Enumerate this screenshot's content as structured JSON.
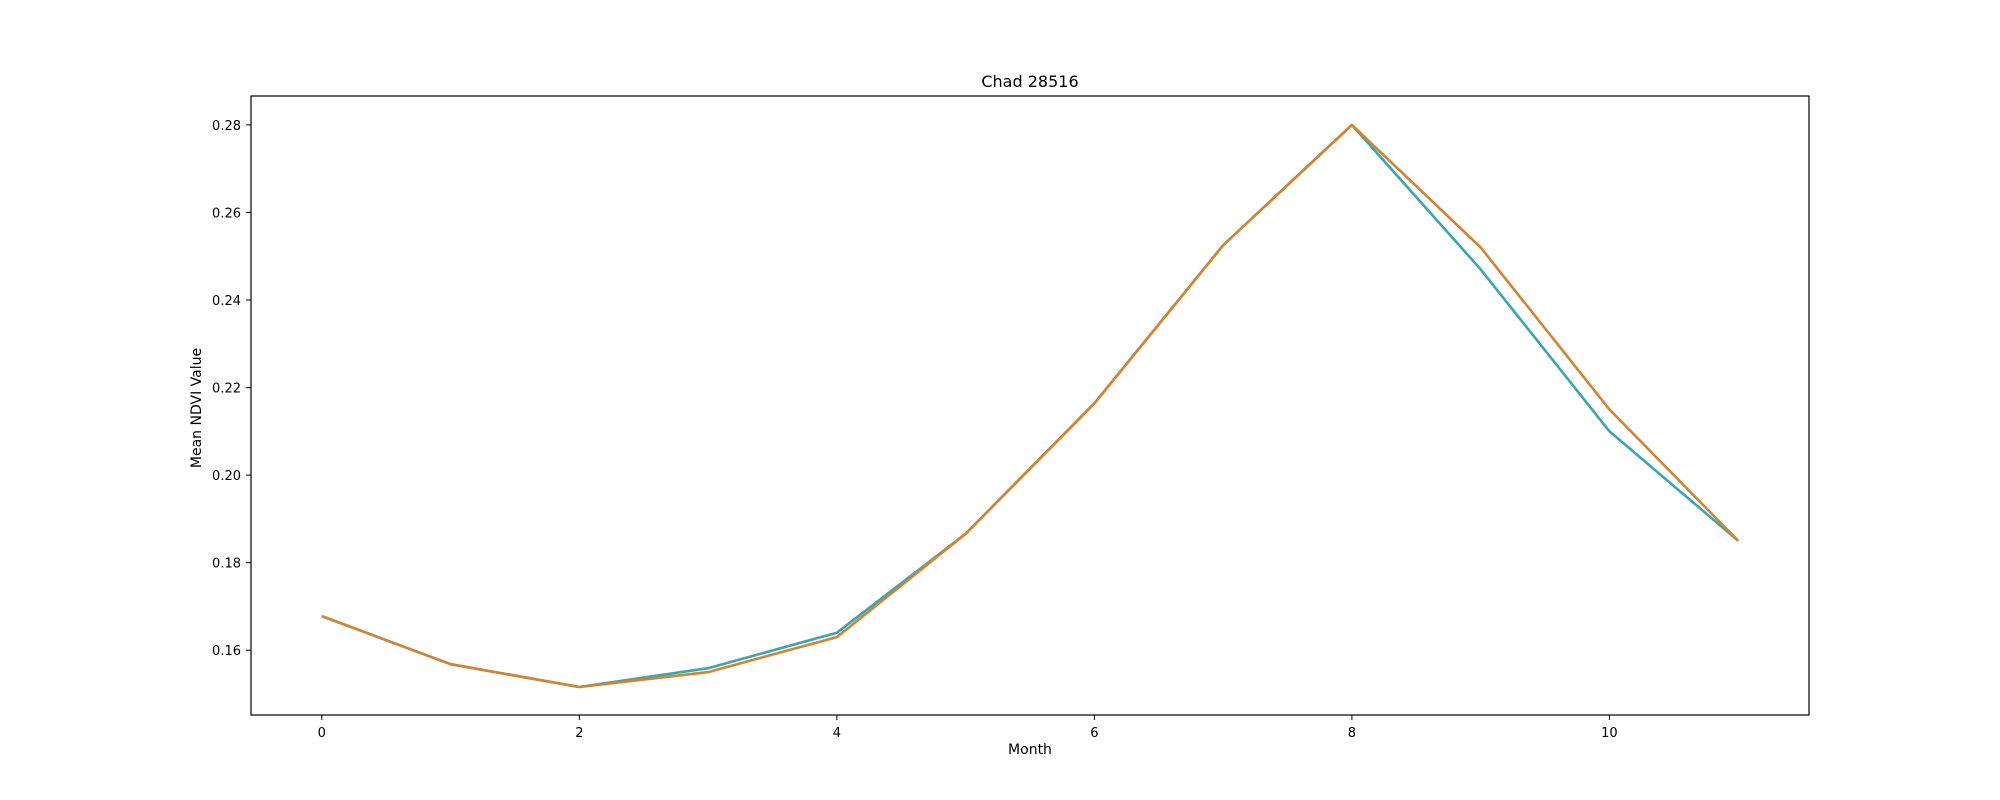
{
  "chart_data": {
    "type": "line",
    "title": "Chad 28516",
    "xlabel": "Month",
    "ylabel": "Mean NDVI Value",
    "xlim": [
      -0.55,
      11.55
    ],
    "ylim": [
      0.1452,
      0.2866
    ],
    "grid": false,
    "x": [
      0,
      1,
      2,
      3,
      4,
      5,
      6,
      7,
      8,
      9,
      10,
      11
    ],
    "x_ticks": [
      "0",
      "2",
      "4",
      "6",
      "8",
      "10"
    ],
    "y_ticks": [
      "0.16",
      "0.18",
      "0.20",
      "0.22",
      "0.24",
      "0.26",
      "0.28"
    ],
    "series": [
      {
        "color": "#3aa6b0",
        "values": [
          0.1678,
          0.1568,
          0.1516,
          0.1559,
          0.164,
          0.1866,
          0.2164,
          0.2525,
          0.28,
          0.247,
          0.21,
          0.185
        ]
      },
      {
        "color": "#d6822e",
        "values": [
          0.1678,
          0.1568,
          0.1516,
          0.155,
          0.163,
          0.1866,
          0.2164,
          0.2525,
          0.28,
          0.252,
          0.215,
          0.185
        ]
      }
    ]
  }
}
